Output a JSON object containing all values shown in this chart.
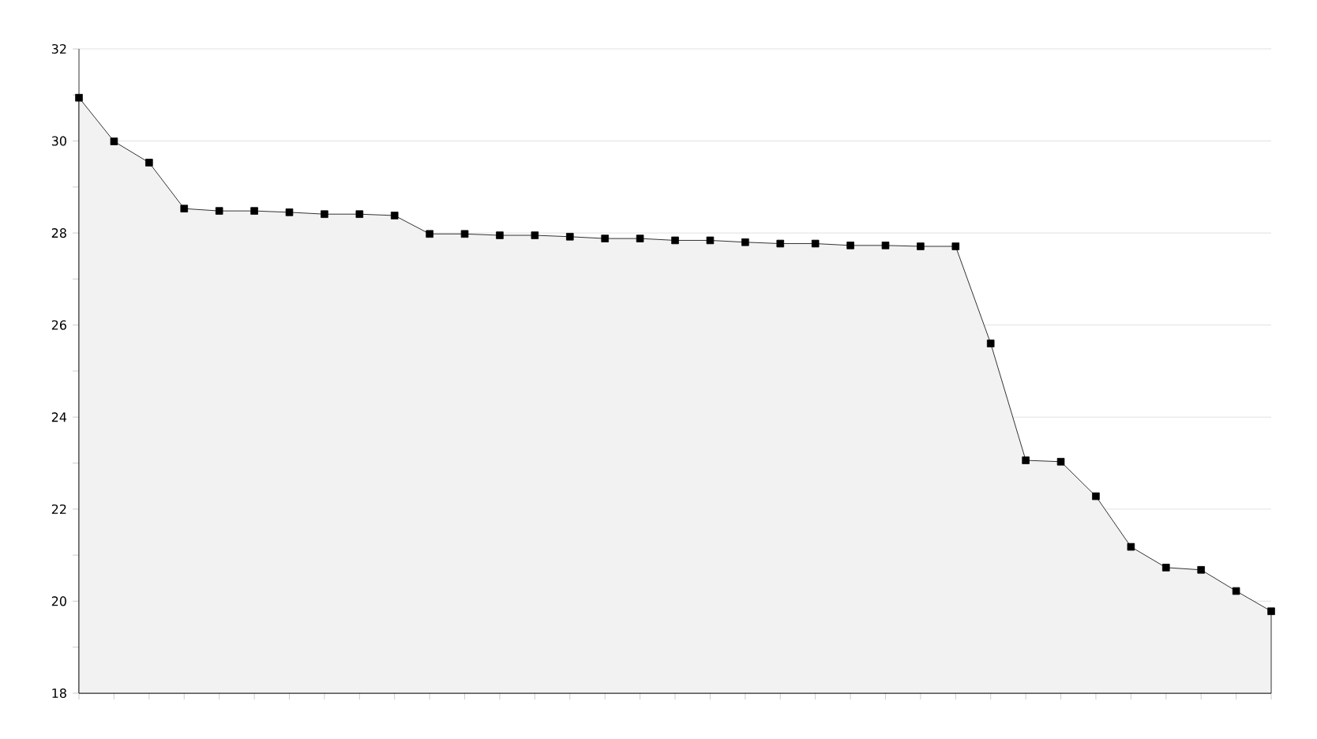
{
  "chart_data": {
    "type": "area",
    "categories": [
      null,
      null,
      null,
      null,
      null,
      null,
      null,
      null,
      null,
      null,
      null,
      null,
      null,
      null,
      null,
      null,
      null,
      null,
      null,
      null,
      null,
      null,
      null,
      null,
      null,
      null,
      null,
      null,
      null,
      null,
      null,
      null,
      null,
      null,
      null
    ],
    "series": [
      {
        "color": "#000000",
        "values": [
          30.94,
          29.99,
          29.53,
          28.53,
          28.48,
          28.48,
          28.45,
          28.41,
          28.41,
          28.38,
          27.98,
          27.98,
          27.95,
          27.95,
          27.92,
          27.88,
          27.88,
          27.84,
          27.84,
          27.8,
          27.77,
          27.77,
          27.73,
          27.73,
          27.71,
          27.71,
          25.6,
          23.06,
          23.03,
          22.28,
          21.18,
          20.73,
          20.68,
          20.22,
          19.78
        ]
      }
    ],
    "ylim": [
      18,
      32
    ],
    "yticks": [
      18,
      20,
      22,
      24,
      26,
      28,
      30,
      32
    ],
    "grid": "y",
    "marker": "square",
    "line_style": "solid"
  }
}
